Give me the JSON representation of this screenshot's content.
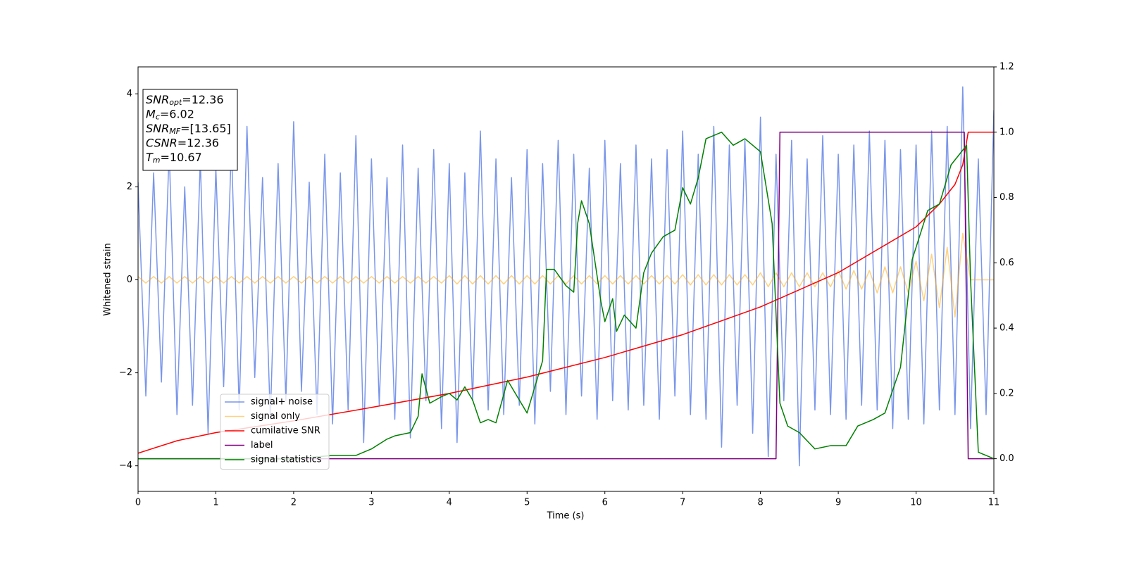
{
  "chart_data": {
    "type": "line",
    "xlabel": "Time (s)",
    "ylabel": "Whitened strain",
    "xlim": [
      0,
      11
    ],
    "xticks": [
      0,
      1,
      2,
      3,
      4,
      5,
      6,
      7,
      8,
      9,
      10,
      11
    ],
    "ylim": [
      -4.55,
      4.58
    ],
    "yticks": [
      {
        "value": -4,
        "label": "−4"
      },
      {
        "value": -2,
        "label": "−2"
      },
      0,
      2,
      4
    ],
    "y2lim": [
      -0.1,
      1.2
    ],
    "y2ticks": [
      {
        "value": 0,
        "label": "0.0"
      },
      {
        "value": 0.2,
        "label": "0.2"
      },
      {
        "value": 0.4,
        "label": "0.4"
      },
      {
        "value": 0.6,
        "label": "0.6"
      },
      {
        "value": 0.8,
        "label": "0.8"
      },
      {
        "value": 1.0,
        "label": "1.0"
      },
      {
        "value": 1.2,
        "label": "1.2"
      }
    ],
    "legend": "lower left",
    "annotations": [
      {
        "name": "SNR",
        "sub": "opt",
        "text": "=12.36"
      },
      {
        "name": "M",
        "sub": "c",
        "text": "=6.02"
      },
      {
        "name": "SNR",
        "sub": "MF",
        "text": "=[13.65]"
      },
      {
        "name": "CSNR",
        "sub": "",
        "text": "=12.36"
      },
      {
        "name": "T",
        "sub": "m",
        "text": "=10.67"
      }
    ],
    "x": [
      0,
      0.1,
      0.2,
      0.3,
      0.4,
      0.5,
      0.6,
      0.7,
      0.8,
      0.9,
      1,
      1.1,
      1.2,
      1.3,
      1.4,
      1.5,
      1.6,
      1.7,
      1.8,
      1.9,
      2,
      2.1,
      2.2,
      2.3,
      2.4,
      2.5,
      2.6,
      2.7,
      2.8,
      2.9,
      3,
      3.1,
      3.2,
      3.3,
      3.4,
      3.5,
      3.6,
      3.7,
      3.8,
      3.9,
      4,
      4.1,
      4.2,
      4.3,
      4.4,
      4.5,
      4.6,
      4.7,
      4.8,
      4.9,
      5,
      5.1,
      5.2,
      5.3,
      5.4,
      5.5,
      5.6,
      5.7,
      5.8,
      5.9,
      6,
      6.1,
      6.2,
      6.3,
      6.4,
      6.5,
      6.6,
      6.7,
      6.8,
      6.9,
      7,
      7.1,
      7.2,
      7.3,
      7.4,
      7.5,
      7.6,
      7.7,
      7.8,
      7.9,
      8,
      8.1,
      8.2,
      8.3,
      8.4,
      8.5,
      8.6,
      8.7,
      8.8,
      8.9,
      9,
      9.1,
      9.2,
      9.3,
      9.4,
      9.5,
      9.6,
      9.7,
      9.8,
      9.9,
      10,
      10.1,
      10.2,
      10.3,
      10.4,
      10.5,
      10.6,
      10.7,
      10.8,
      10.9,
      11
    ],
    "series": [
      {
        "name": "signal+ noise",
        "color": "#4169e1",
        "alpha": 0.7,
        "values": [
          2.1,
          -2.5,
          2.3,
          -2.2,
          2.8,
          -2.9,
          2.0,
          -2.7,
          2.6,
          -3.3,
          2.4,
          -2.3,
          2.9,
          -2.8,
          3.3,
          -2.1,
          2.2,
          -3.0,
          2.5,
          -2.6,
          3.4,
          -2.4,
          2.1,
          -2.9,
          2.7,
          -3.1,
          2.3,
          -2.8,
          3.1,
          -3.5,
          2.6,
          -2.7,
          2.2,
          -3.0,
          2.9,
          -3.4,
          2.4,
          -2.6,
          2.8,
          -3.2,
          2.5,
          -3.5,
          2.3,
          -2.6,
          3.2,
          -2.8,
          2.6,
          -2.9,
          2.2,
          -2.7,
          2.8,
          -3.1,
          2.5,
          -2.4,
          3.0,
          -2.9,
          2.7,
          -2.5,
          2.4,
          -3.0,
          3.0,
          -2.6,
          2.5,
          -2.8,
          2.9,
          -2.7,
          2.6,
          -3.0,
          2.8,
          -2.5,
          3.2,
          -2.9,
          2.7,
          -3.0,
          3.3,
          -3.6,
          2.9,
          -2.7,
          3.0,
          -3.3,
          3.5,
          -3.8,
          2.7,
          -2.6,
          3.0,
          -4.0,
          2.6,
          -2.8,
          3.1,
          -2.9,
          2.7,
          -3.0,
          2.9,
          -2.7,
          3.2,
          -2.8,
          3.0,
          -3.2,
          2.8,
          -3.0,
          2.9,
          -3.1,
          3.2,
          -2.8,
          3.3,
          -2.9,
          4.15,
          -3.2,
          2.6,
          -2.9,
          3.65
        ]
      },
      {
        "name": "signal only",
        "color": "#ffa500",
        "alpha": 0.5,
        "values": [
          0.07,
          -0.07,
          0.07,
          -0.07,
          0.07,
          -0.07,
          0.07,
          -0.07,
          0.07,
          -0.07,
          0.07,
          -0.07,
          0.07,
          -0.07,
          0.07,
          -0.07,
          0.07,
          -0.07,
          0.07,
          -0.07,
          0.07,
          -0.07,
          0.07,
          -0.07,
          0.07,
          -0.07,
          0.07,
          -0.07,
          0.07,
          -0.07,
          0.07,
          -0.07,
          0.07,
          -0.07,
          0.07,
          -0.07,
          0.07,
          -0.07,
          0.07,
          -0.07,
          0.09,
          -0.09,
          0.09,
          -0.09,
          0.09,
          -0.09,
          0.09,
          -0.09,
          0.09,
          -0.09,
          0.09,
          -0.09,
          0.09,
          -0.09,
          0.09,
          -0.09,
          0.09,
          -0.09,
          0.09,
          -0.09,
          0.09,
          -0.09,
          0.09,
          -0.09,
          0.09,
          -0.09,
          0.09,
          -0.09,
          0.09,
          -0.09,
          0.11,
          -0.11,
          0.11,
          -0.11,
          0.11,
          -0.11,
          0.11,
          -0.11,
          0.11,
          -0.11,
          0.15,
          -0.15,
          0.15,
          -0.15,
          0.15,
          -0.15,
          0.15,
          -0.15,
          0.15,
          -0.15,
          0.2,
          -0.2,
          0.2,
          -0.2,
          0.2,
          -0.28,
          0.28,
          -0.28,
          0.28,
          -0.28,
          0.4,
          -0.45,
          0.55,
          -0.6,
          0.7,
          -0.8,
          1.0,
          0,
          0,
          0,
          0
        ]
      },
      {
        "name": "cumilative SNR",
        "color": "#ff0000",
        "axis": "y2",
        "x": [
          0,
          0.5,
          1,
          2,
          3,
          4,
          5,
          6,
          7,
          8,
          9,
          10,
          10.3,
          10.5,
          10.6,
          10.67,
          11
        ],
        "values": [
          0.017,
          0.055,
          0.08,
          0.116,
          0.157,
          0.2,
          0.25,
          0.31,
          0.38,
          0.465,
          0.57,
          0.71,
          0.78,
          0.84,
          0.9,
          1.0,
          1.0
        ]
      },
      {
        "name": "label",
        "color": "#800080",
        "axis": "y2",
        "x": [
          0,
          8.2,
          8.25,
          10.62,
          10.67,
          11
        ],
        "values": [
          0,
          0,
          1,
          1,
          0,
          0
        ]
      },
      {
        "name": "signal statistics",
        "color": "#008000",
        "axis": "y2",
        "x": [
          0,
          2,
          2.5,
          2.8,
          3,
          3.2,
          3.3,
          3.5,
          3.6,
          3.65,
          3.75,
          3.9,
          4.0,
          4.1,
          4.2,
          4.3,
          4.4,
          4.5,
          4.6,
          4.75,
          4.85,
          5.0,
          5.1,
          5.2,
          5.25,
          5.35,
          5.5,
          5.6,
          5.65,
          5.7,
          5.8,
          5.95,
          6.0,
          6.1,
          6.15,
          6.25,
          6.4,
          6.5,
          6.6,
          6.75,
          6.9,
          7.0,
          7.1,
          7.2,
          7.3,
          7.5,
          7.65,
          7.8,
          8.0,
          8.15,
          8.25,
          8.35,
          8.5,
          8.7,
          8.9,
          9.1,
          9.25,
          9.45,
          9.6,
          9.8,
          9.95,
          10.15,
          10.3,
          10.45,
          10.55,
          10.65,
          10.7,
          10.8,
          11
        ],
        "values": [
          0,
          0,
          0.01,
          0.01,
          0.03,
          0.06,
          0.07,
          0.08,
          0.13,
          0.26,
          0.17,
          0.19,
          0.2,
          0.18,
          0.22,
          0.18,
          0.11,
          0.12,
          0.11,
          0.24,
          0.2,
          0.14,
          0.22,
          0.3,
          0.58,
          0.58,
          0.53,
          0.51,
          0.72,
          0.79,
          0.72,
          0.48,
          0.42,
          0.49,
          0.39,
          0.44,
          0.4,
          0.57,
          0.63,
          0.68,
          0.7,
          0.83,
          0.78,
          0.86,
          0.98,
          1.0,
          0.96,
          0.98,
          0.94,
          0.72,
          0.17,
          0.1,
          0.08,
          0.03,
          0.04,
          0.04,
          0.1,
          0.12,
          0.14,
          0.28,
          0.61,
          0.76,
          0.78,
          0.9,
          0.93,
          0.96,
          0.55,
          0.02,
          0
        ]
      }
    ]
  }
}
